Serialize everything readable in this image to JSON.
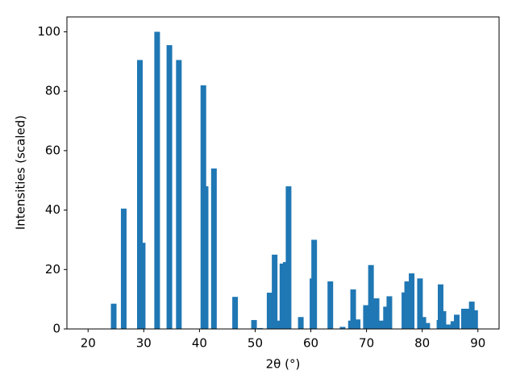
{
  "chart_data": {
    "type": "bar",
    "xlabel": "2θ (°)",
    "ylabel": "Intensities (scaled)",
    "color": "#1f77b4",
    "x": [
      24.6,
      26.4,
      29.3,
      29.8,
      32.4,
      34.6,
      36.3,
      40.7,
      41.1,
      42.6,
      46.4,
      49.8,
      50.9,
      52.6,
      53.5,
      54.0,
      54.9,
      55.5,
      56.0,
      58.2,
      60.3,
      60.6,
      63.5,
      65.7,
      67.2,
      67.6,
      68.4,
      69.9,
      70.8,
      71.3,
      71.8,
      72.8,
      73.5,
      74.1,
      76.8,
      77.3,
      77.7,
      78.1,
      79.6,
      80.2,
      80.9,
      83.1,
      83.3,
      83.8,
      84.6,
      85.6,
      86.2,
      87.5,
      88.1,
      88.9,
      89.5
    ],
    "values": [
      8.5,
      40.5,
      90.5,
      29,
      100,
      95.5,
      90.5,
      82,
      48,
      54,
      10.8,
      3,
      0.3,
      12.2,
      25,
      2.8,
      22,
      22.5,
      48,
      4,
      17,
      30,
      16,
      0.7,
      2.8,
      13.3,
      3.2,
      8,
      21.5,
      9,
      10.3,
      2.8,
      7.5,
      11,
      12.3,
      16,
      1.5,
      18.7,
      17,
      4,
      2,
      3,
      15,
      6,
      1.5,
      2.6,
      4.8,
      6.8,
      6.8,
      9.2,
      6.3
    ],
    "xlim": [
      16.2,
      93.8
    ],
    "ylim": [
      0,
      105
    ],
    "xticks": [
      20,
      30,
      40,
      50,
      60,
      70,
      80,
      90
    ],
    "yticks": [
      0,
      20,
      40,
      60,
      80,
      100
    ]
  }
}
